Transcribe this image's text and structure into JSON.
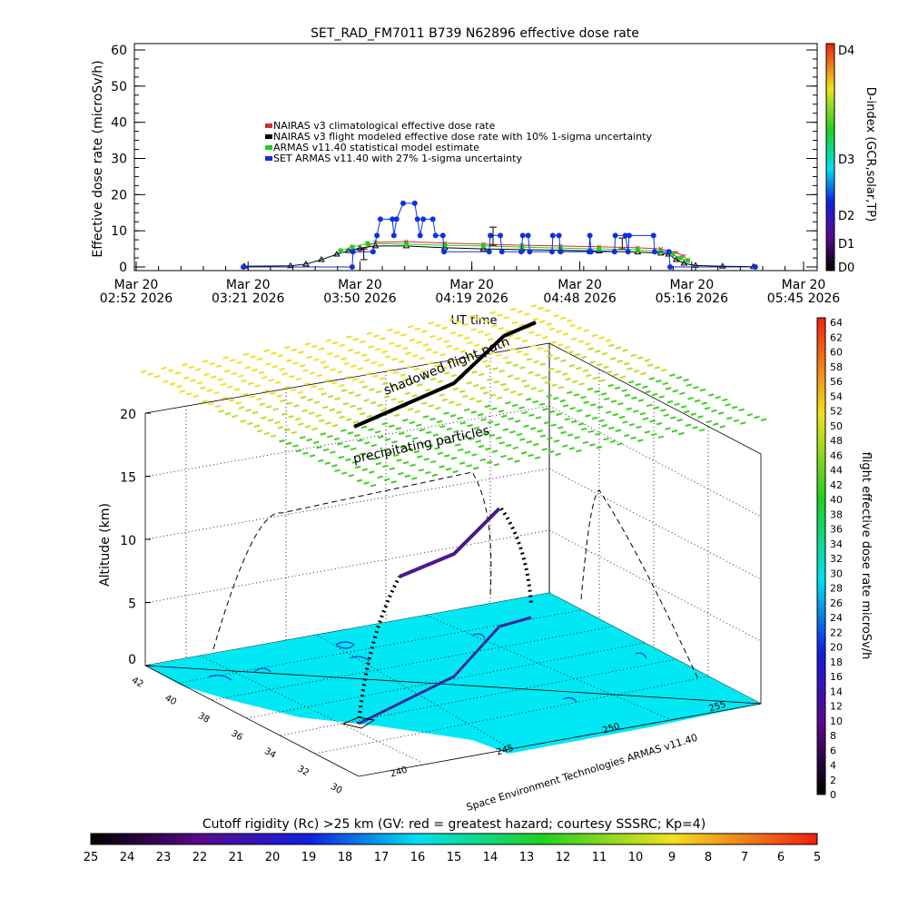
{
  "chart_data": [
    {
      "type": "line",
      "title": "SET_RAD_FM7011   B739 N62896 effective dose rate",
      "xlabel": "UT time",
      "ylabel": "Effective dose rate (microSv/h)",
      "ylim": [
        0,
        60
      ],
      "yticks": [
        "0",
        "10",
        "20",
        "30",
        "40",
        "50",
        "60"
      ],
      "x_unit": "minutes after Mar 20 02:52 2026",
      "xlim": [
        0,
        173
      ],
      "xticks": [
        {
          "x": 0,
          "line1": "Mar 20",
          "line2": "02:52 2026"
        },
        {
          "x": 29,
          "line1": "Mar 20",
          "line2": "03:21 2026"
        },
        {
          "x": 58,
          "line1": "Mar 20",
          "line2": "03:50 2026"
        },
        {
          "x": 87,
          "line1": "Mar 20",
          "line2": "04:19 2026"
        },
        {
          "x": 115,
          "line1": "Mar 20",
          "line2": "04:48 2026"
        },
        {
          "x": 144,
          "line1": "Mar 20",
          "line2": "05:16 2026"
        },
        {
          "x": 173,
          "line1": "Mar 20",
          "line2": "05:45 2026"
        }
      ],
      "legend_position": "upper-center",
      "series": [
        {
          "name": "NAIRAS v3 climatological effective dose rate",
          "color": "#d03030",
          "marker": "x",
          "points": [
            [
              58,
              4.5
            ],
            [
              62,
              6.8
            ],
            [
              70,
              7
            ],
            [
              80,
              6.6
            ],
            [
              90,
              6.3
            ],
            [
              100,
              6
            ],
            [
              110,
              5.8
            ],
            [
              120,
              5.6
            ],
            [
              130,
              5.3
            ],
            [
              136,
              5
            ],
            [
              140,
              4
            ],
            [
              142,
              3
            ]
          ]
        },
        {
          "name": "NAIRAS v3 flight modeled effective dose rate with 10% 1-sigma uncertainty",
          "color": "#000000",
          "marker": "triangle",
          "points": [
            [
              28,
              0.2
            ],
            [
              40,
              0.3
            ],
            [
              44,
              0.8
            ],
            [
              48,
              2
            ],
            [
              52,
              3.5
            ],
            [
              55,
              4.5
            ],
            [
              58,
              5.2
            ],
            [
              62,
              5.8
            ],
            [
              70,
              5.8
            ],
            [
              80,
              5.3
            ],
            [
              90,
              5
            ],
            [
              100,
              4.8
            ],
            [
              110,
              4.6
            ],
            [
              120,
              4.4
            ],
            [
              130,
              4.1
            ],
            [
              136,
              3.8
            ],
            [
              138,
              3.5
            ],
            [
              140,
              2
            ],
            [
              142,
              1
            ],
            [
              145,
              0.4
            ],
            [
              152,
              0.2
            ],
            [
              160,
              0.1
            ]
          ]
        },
        {
          "name": "ARMAS v11.40 statistical model estimate",
          "color": "#22cc22",
          "marker": "square",
          "points": [
            [
              53,
              4.5
            ],
            [
              56,
              5.5
            ],
            [
              60,
              6.5
            ],
            [
              70,
              6.3
            ],
            [
              80,
              6
            ],
            [
              90,
              5.8
            ],
            [
              100,
              5.5
            ],
            [
              110,
              5.2
            ],
            [
              120,
              5
            ],
            [
              130,
              4.7
            ],
            [
              136,
              4.3
            ],
            [
              139,
              3.5
            ],
            [
              141,
              2.5
            ],
            [
              143,
              1.8
            ]
          ]
        },
        {
          "name": "SET ARMAS v11.40 with 27% 1-sigma uncertainty",
          "color": "#1030e0",
          "marker": "circle",
          "points": [
            [
              27.8,
              0
            ],
            [
              56,
              0
            ],
            [
              56.2,
              4.2
            ],
            [
              61.4,
              4.2
            ],
            [
              62.4,
              8.7
            ],
            [
              63.3,
              13.2
            ],
            [
              66.4,
              13.2
            ],
            [
              66.8,
              8.7
            ],
            [
              67.5,
              13.2
            ],
            [
              69.2,
              17.6
            ],
            [
              72.2,
              17.6
            ],
            [
              72.9,
              13.2
            ],
            [
              73.6,
              8.7
            ],
            [
              74.4,
              13.2
            ],
            [
              76.9,
              13.2
            ],
            [
              77.6,
              8.7
            ],
            [
              79.5,
              8.7
            ],
            [
              79.8,
              4.2
            ],
            [
              91.5,
              4.2
            ],
            [
              91.8,
              8.7
            ],
            [
              94.4,
              8.7
            ],
            [
              94.8,
              4.2
            ],
            [
              99.8,
              4.2
            ],
            [
              100.2,
              8.7
            ],
            [
              101.6,
              8.7
            ],
            [
              102,
              4.2
            ],
            [
              107.8,
              4.2
            ],
            [
              108,
              8.7
            ],
            [
              109.6,
              8.7
            ],
            [
              110,
              4.2
            ],
            [
              117.4,
              4.2
            ],
            [
              117.6,
              8.7
            ],
            [
              117.9,
              4.2
            ],
            [
              124,
              4.2
            ],
            [
              124.2,
              8.7
            ],
            [
              126.8,
              8.7
            ],
            [
              127.5,
              4.2
            ],
            [
              127.8,
              8.7
            ],
            [
              134.1,
              8.7
            ],
            [
              134.4,
              4.2
            ],
            [
              138.1,
              4.2
            ],
            [
              138.4,
              0
            ],
            [
              160.5,
              0
            ]
          ]
        }
      ],
      "error_bars": [
        {
          "x": 59,
          "low": 2,
          "high": 5
        },
        {
          "x": 92.5,
          "low": 6,
          "high": 11
        },
        {
          "x": 126,
          "low": 5,
          "high": 8
        }
      ],
      "colorbar": {
        "label": "D-index (GCR,solar,TP)",
        "ticks": [
          "D0",
          "D1",
          "D2",
          "D3",
          "D4"
        ]
      }
    },
    {
      "type": "scatter",
      "title": "Cutoff rigidity (Rc) >25 km (GV: red = greatest hazard; courtesy SSSRC; Kp=4)",
      "zlabel": "Altitude (km)",
      "zticks": [
        "0",
        "5",
        "10",
        "15",
        "20"
      ],
      "lat_ticks": [
        "42",
        "40",
        "38",
        "36",
        "34",
        "32",
        "30"
      ],
      "lon_ticks": [
        "240",
        "245",
        "250",
        "255"
      ],
      "annotations": [
        "shadowed flight path",
        "precipitating particles"
      ],
      "credit": "Space Environment Technologies ARMAS v11.40",
      "dose_colorbar": {
        "label": "flight effective dose rate microSv/h",
        "ticks": [
          "0",
          "2",
          "4",
          "6",
          "8",
          "10",
          "12",
          "14",
          "16",
          "18",
          "20",
          "22",
          "24",
          "26",
          "28",
          "30",
          "32",
          "34",
          "36",
          "38",
          "40",
          "42",
          "44",
          "46",
          "48",
          "50",
          "52",
          "54",
          "56",
          "58",
          "60",
          "62",
          "64"
        ]
      },
      "rigidity_colorbar": {
        "ticks": [
          "25",
          "24",
          "23",
          "22",
          "21",
          "20",
          "19",
          "18",
          "17",
          "16",
          "15",
          "14",
          "13",
          "12",
          "11",
          "10",
          "9",
          "8",
          "7",
          "6",
          "5"
        ]
      }
    }
  ]
}
